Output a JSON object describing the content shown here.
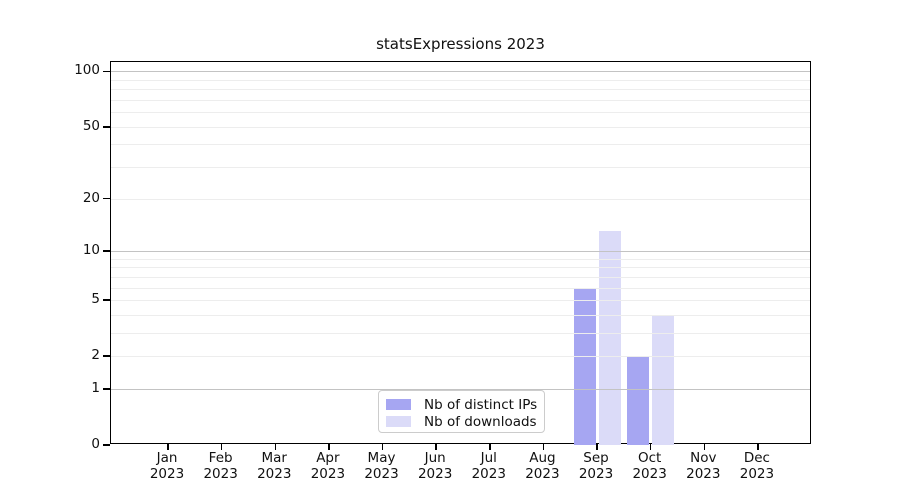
{
  "title": "statsExpressions 2023",
  "chart_data": {
    "type": "bar",
    "title": "statsExpressions 2023",
    "categories": [
      "Jan 2023",
      "Feb 2023",
      "Mar 2023",
      "Apr 2023",
      "May 2023",
      "Jun 2023",
      "Jul 2023",
      "Aug 2023",
      "Sep 2023",
      "Oct 2023",
      "Nov 2023",
      "Dec 2023"
    ],
    "series": [
      {
        "name": "Nb of distinct IPs",
        "color": "#a6a6f2",
        "values": [
          0,
          0,
          0,
          0,
          0,
          0,
          0,
          0,
          6,
          2,
          0,
          0
        ]
      },
      {
        "name": "Nb of downloads",
        "color": "#dbdbf8",
        "values": [
          0,
          0,
          0,
          0,
          0,
          0,
          0,
          0,
          13,
          4,
          0,
          0
        ]
      }
    ],
    "xlabel": "",
    "ylabel": "",
    "yscale": "log1p",
    "ylim": [
      0,
      113
    ],
    "y_tick_labels": [
      0,
      1,
      2,
      5,
      10,
      20,
      50,
      100
    ],
    "y_major_gridlines": [
      1,
      10,
      100
    ],
    "y_minor_gridlines": [
      2,
      3,
      4,
      5,
      6,
      7,
      8,
      9,
      20,
      30,
      40,
      50,
      60,
      70,
      80,
      90
    ],
    "grid": true,
    "legend_position": "inside-bottom-center"
  }
}
